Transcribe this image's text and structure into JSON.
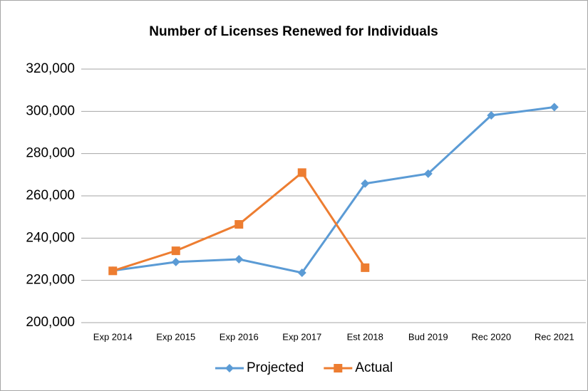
{
  "chart_data": {
    "type": "line",
    "title": "Number of Licenses Renewed for Individuals",
    "categories": [
      "Exp 2014",
      "Exp 2015",
      "Exp 2016",
      "Exp 2017",
      "Est 2018",
      "Bud 2019",
      "Rec 2020",
      "Rec 2021"
    ],
    "series": [
      {
        "name": "Projected",
        "color": "#5b9bd5",
        "marker": "diamond",
        "values": [
          224600,
          228700,
          230000,
          223600,
          265800,
          270500,
          298100,
          302000
        ]
      },
      {
        "name": "Actual",
        "color": "#ed7d31",
        "marker": "square",
        "values": [
          224500,
          234000,
          246500,
          271000,
          226000,
          null,
          null,
          null
        ]
      }
    ],
    "ylim": [
      200000,
      320000
    ],
    "yticks": [
      {
        "value": 200000,
        "label": "200,000"
      },
      {
        "value": 220000,
        "label": "220,000"
      },
      {
        "value": 240000,
        "label": "240,000"
      },
      {
        "value": 260000,
        "label": "260,000"
      },
      {
        "value": 280000,
        "label": "280,000"
      },
      {
        "value": 300000,
        "label": "300,000"
      },
      {
        "value": 320000,
        "label": "320,000"
      }
    ],
    "grid": true,
    "legend": "bottom"
  }
}
